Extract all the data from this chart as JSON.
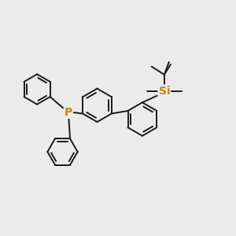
{
  "background_color": "#ebebeb",
  "bond_color": "#1a1a1a",
  "atom_P_color": "#c8860a",
  "atom_Si_color": "#c8860a",
  "line_width": 1.4,
  "figsize": [
    3.0,
    3.0
  ],
  "dpi": 100
}
